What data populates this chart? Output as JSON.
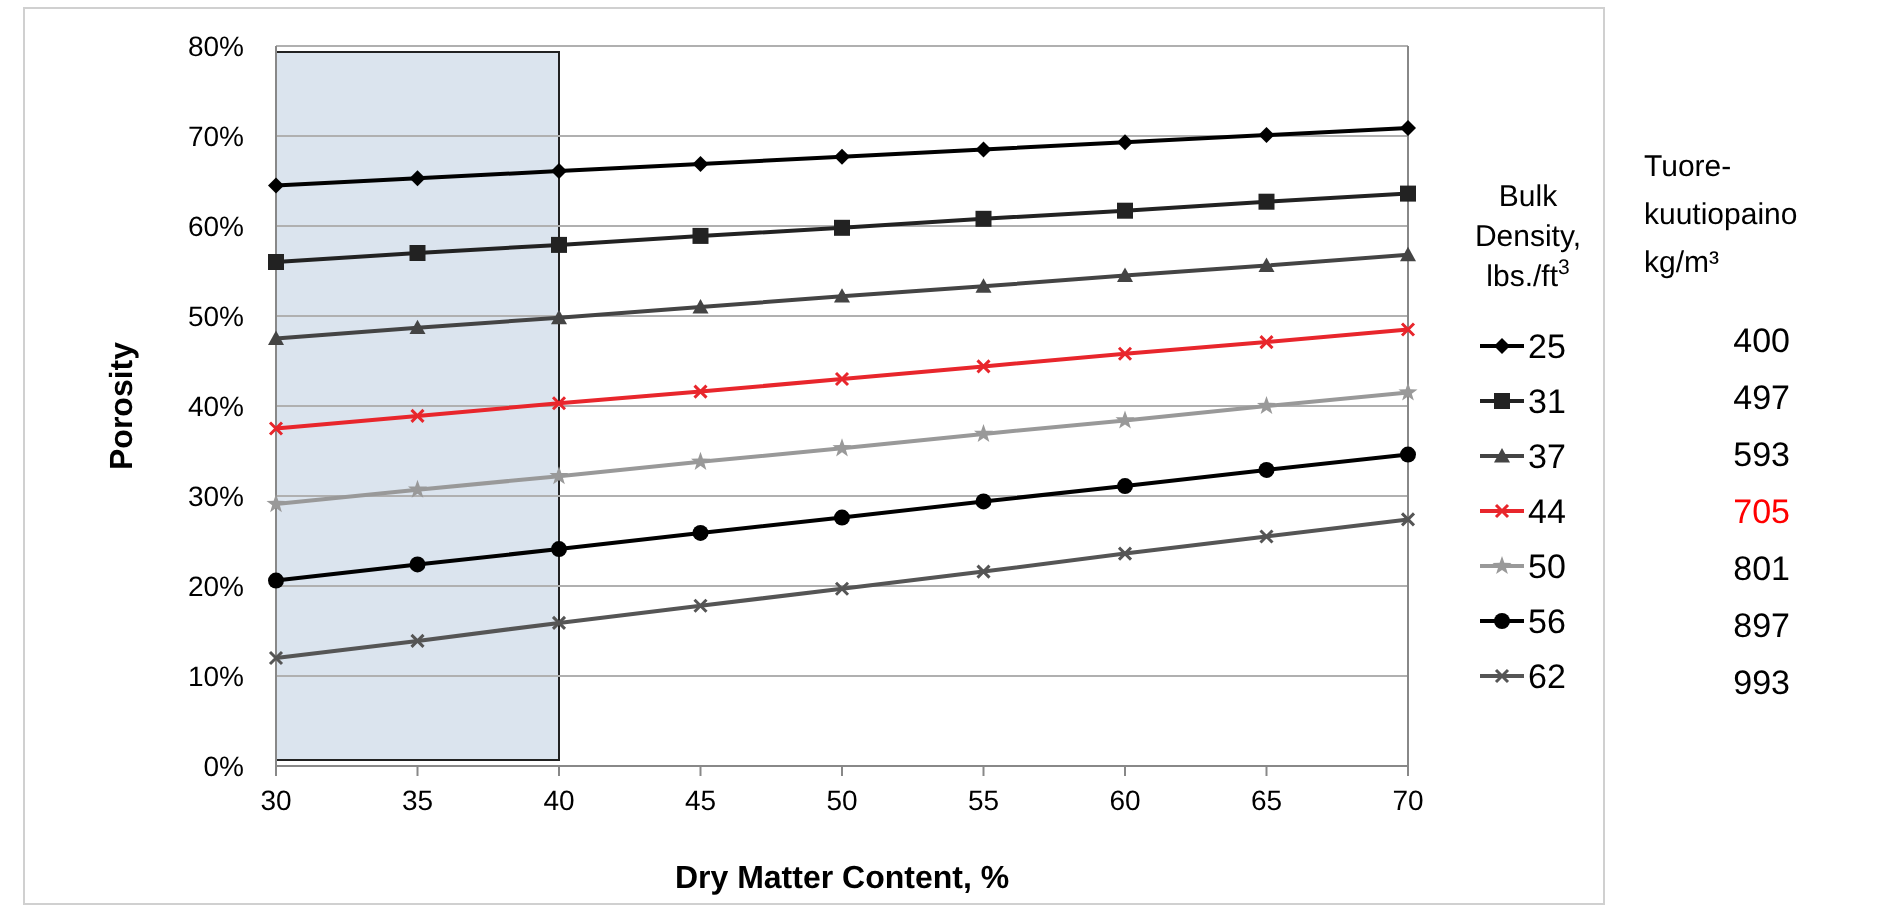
{
  "chart_data": [
    {
      "type": "line",
      "xlabel": "Dry Matter Content, %",
      "ylabel": "Porosity",
      "legend_title": "Bulk Density, lbs./ft$^{3}$",
      "x": [
        30,
        35,
        40,
        45,
        50,
        55,
        60,
        65,
        70
      ],
      "xlim": [
        30,
        70
      ],
      "xticks": [
        30,
        35,
        40,
        45,
        50,
        55,
        60,
        65,
        70
      ],
      "ylim": [
        0,
        80
      ],
      "yticks": [
        {
          "value": 0,
          "label": "0%"
        },
        {
          "value": 10,
          "label": "10%"
        },
        {
          "value": 20,
          "label": "20%"
        },
        {
          "value": 30,
          "label": "30%"
        },
        {
          "value": 40,
          "label": "40%"
        },
        {
          "value": 50,
          "label": "50%"
        },
        {
          "value": 60,
          "label": "60%"
        },
        {
          "value": 70,
          "label": "70%"
        },
        {
          "value": 80,
          "label": "80%"
        }
      ],
      "grid": "y",
      "legend": "right",
      "line_style": "solid",
      "bands": [
        {
          "axis": "x",
          "from": 30,
          "to": 40,
          "color": "#dbe4ee"
        }
      ],
      "series": [
        {
          "name": "25",
          "color": "#000000",
          "marker": "diamond",
          "values": [
            64.5,
            65.3,
            66.1,
            66.9,
            67.7,
            68.5,
            69.3,
            70.1,
            70.9
          ]
        },
        {
          "name": "31",
          "color": "#222222",
          "marker": "square",
          "values": [
            56.0,
            57.0,
            57.9,
            58.9,
            59.8,
            60.8,
            61.7,
            62.7,
            63.6
          ]
        },
        {
          "name": "37",
          "color": "#444444",
          "marker": "triangle",
          "values": [
            47.5,
            48.7,
            49.8,
            51.0,
            52.2,
            53.3,
            54.5,
            55.6,
            56.8
          ]
        },
        {
          "name": "44",
          "color": "#e8262c",
          "marker": "cross",
          "values": [
            37.5,
            38.9,
            40.3,
            41.6,
            43.0,
            44.4,
            45.8,
            47.1,
            48.5
          ]
        },
        {
          "name": "50",
          "color": "#999999",
          "marker": "star",
          "values": [
            29.1,
            30.7,
            32.2,
            33.8,
            35.3,
            36.9,
            38.4,
            40.0,
            41.5
          ]
        },
        {
          "name": "56",
          "color": "#000000",
          "marker": "circle",
          "values": [
            20.6,
            22.4,
            24.1,
            25.9,
            27.6,
            29.4,
            31.1,
            32.9,
            34.6
          ]
        },
        {
          "name": "62",
          "color": "#555555",
          "marker": "cross",
          "values": [
            12.0,
            13.9,
            15.9,
            17.8,
            19.7,
            21.6,
            23.6,
            25.5,
            27.4
          ]
        }
      ]
    },
    {
      "type": "other",
      "title": "Tuore-kuutiopaino kg/m³",
      "categories": [
        "400",
        "497",
        "593",
        "705",
        "801",
        "897",
        "993"
      ],
      "colors": [
        "#000000",
        "#000000",
        "#000000",
        "#ff0000",
        "#000000",
        "#000000",
        "#000000"
      ]
    }
  ]
}
